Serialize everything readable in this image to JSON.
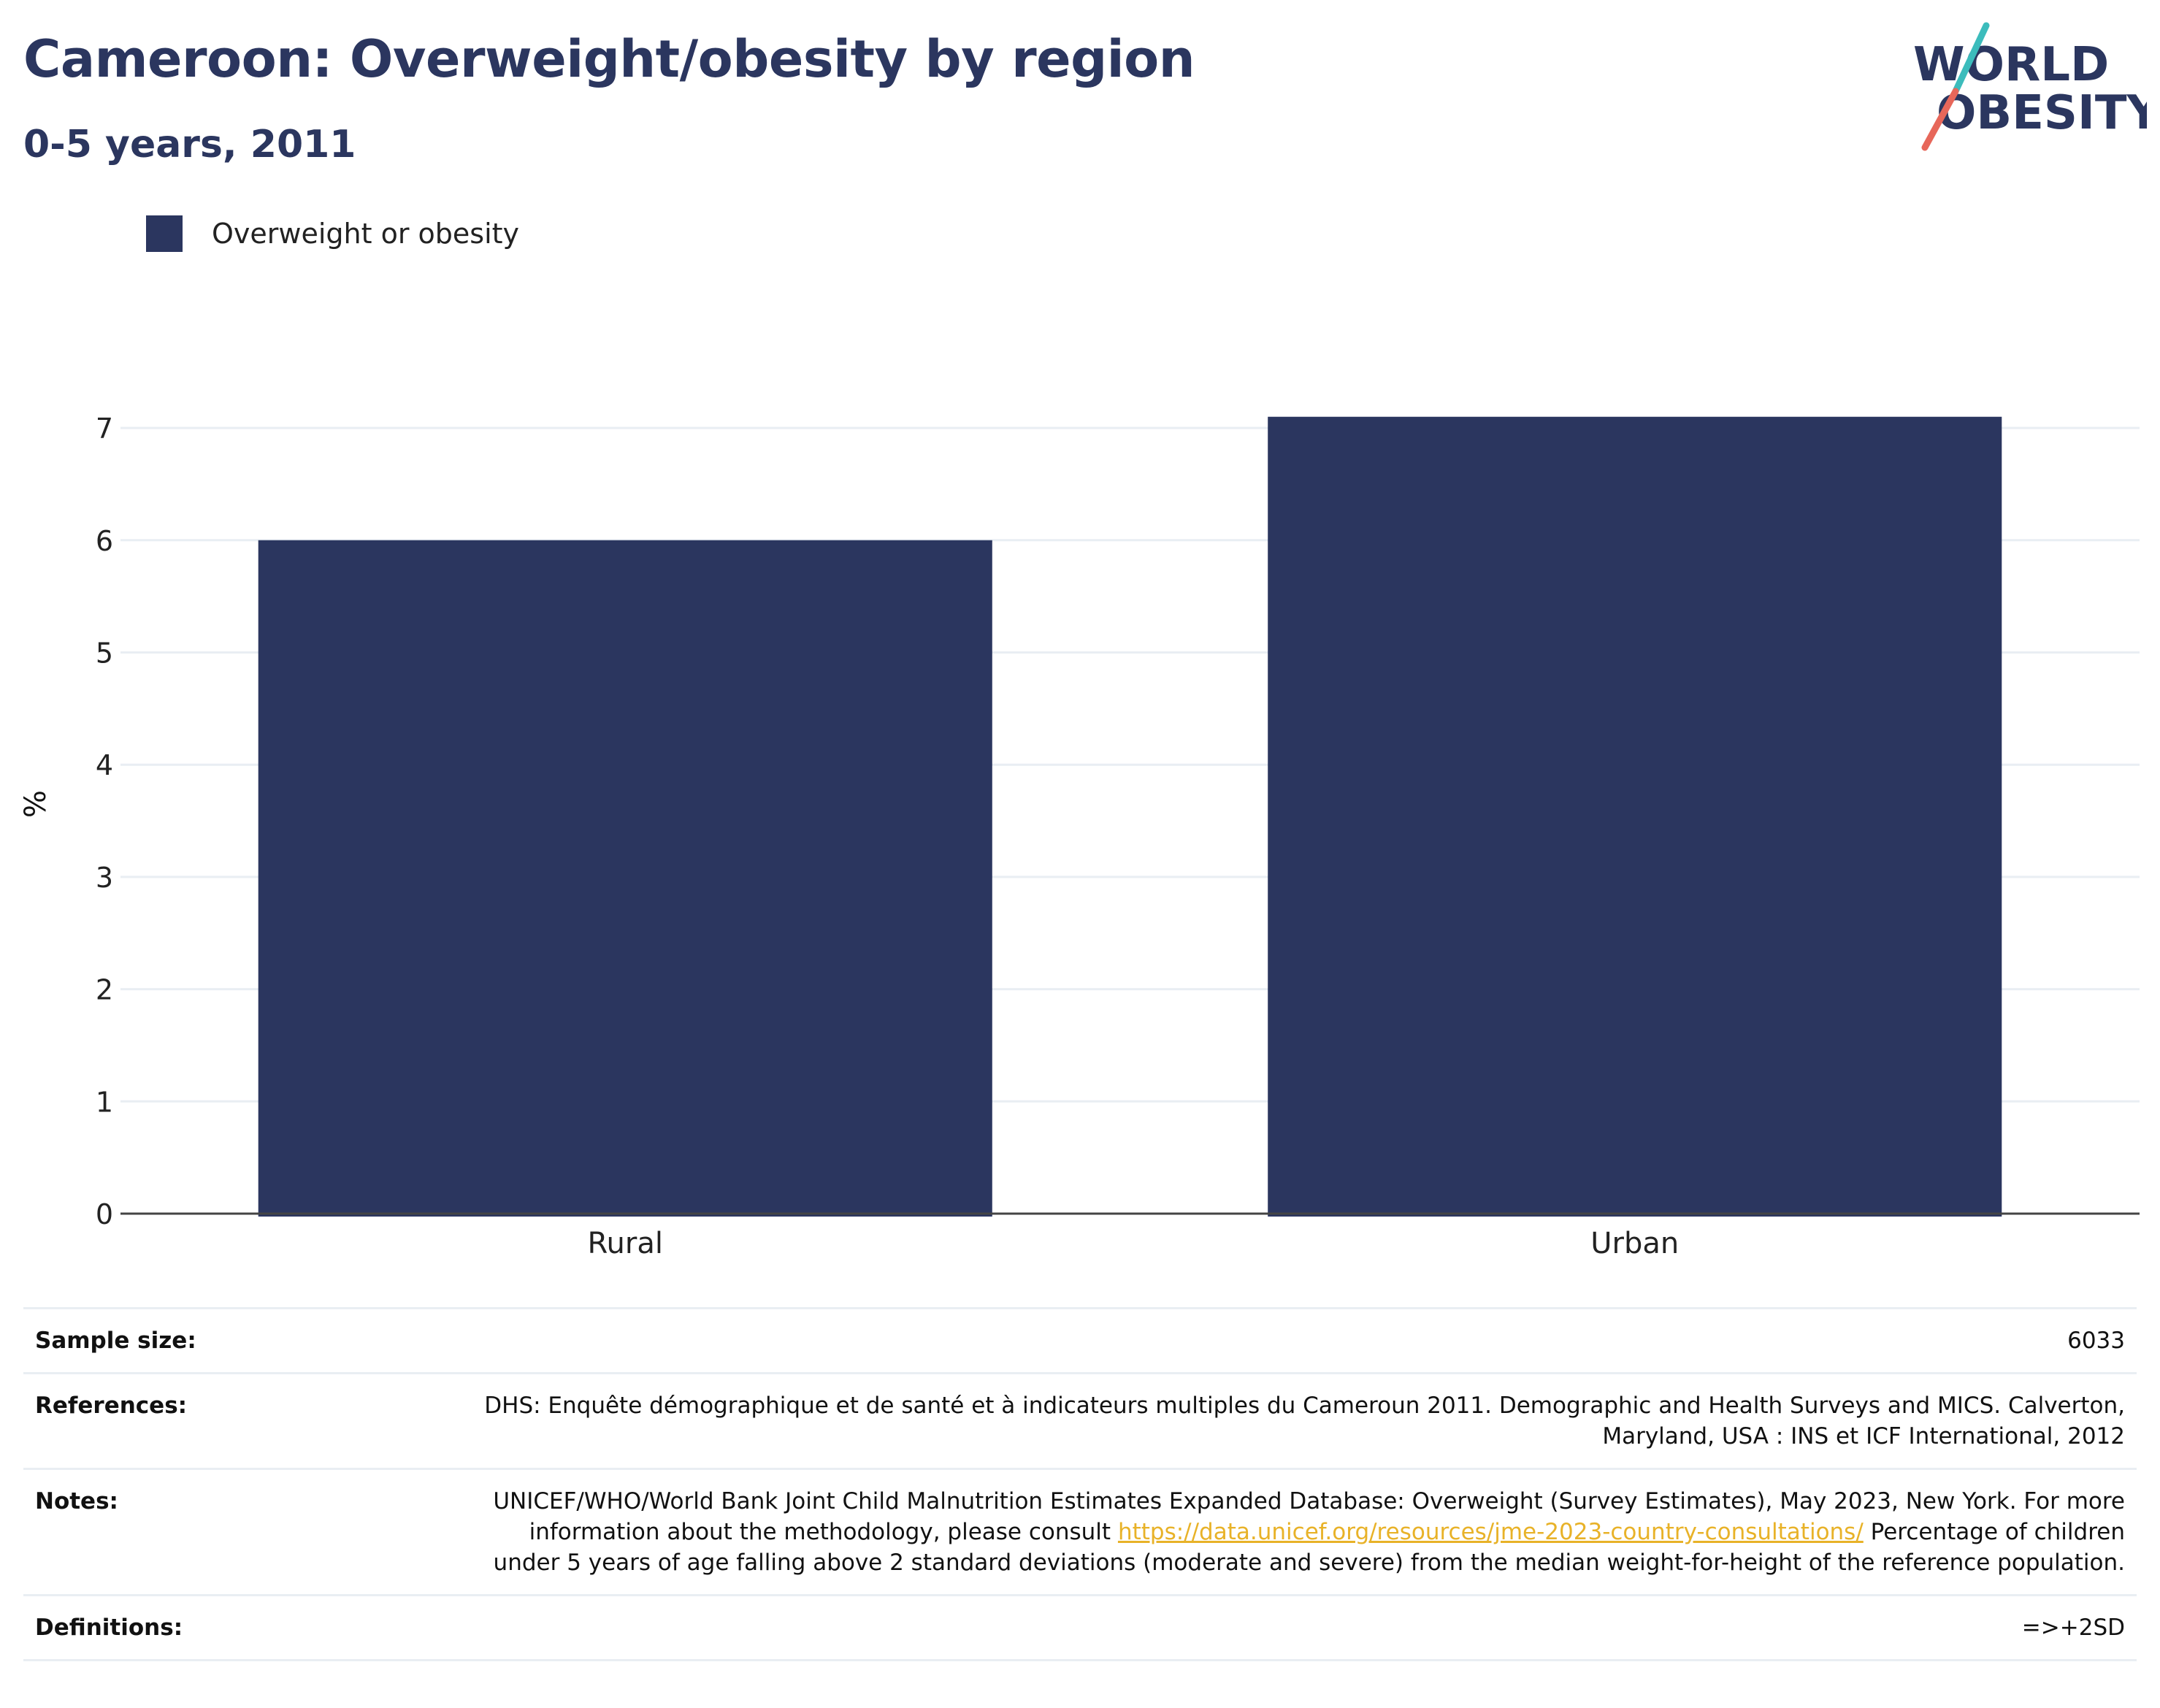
{
  "header": {
    "title": "Cameroon: Overweight/obesity by region",
    "subtitle": "0-5 years, 2011"
  },
  "logo": {
    "line1": "WORLD",
    "line2": "OBESITY",
    "colors": {
      "text": "#2b365f",
      "slash_top": "#3cbcbc",
      "slash_bottom": "#e7675a"
    }
  },
  "legend": {
    "items": [
      {
        "label": "Overweight or obesity",
        "color": "#2b365f"
      }
    ]
  },
  "chart_data": {
    "type": "bar",
    "categories": [
      "Rural",
      "Urban"
    ],
    "series": [
      {
        "name": "Overweight or obesity",
        "values": [
          6.0,
          7.1
        ],
        "color": "#2b365f"
      }
    ],
    "title": "Cameroon: Overweight/obesity by region",
    "subtitle": "0-5 years, 2011",
    "xlabel": "",
    "ylabel": "%",
    "ylim": [
      0,
      7.3
    ],
    "yticks": [
      0,
      1,
      2,
      3,
      4,
      5,
      6,
      7
    ],
    "grid": true,
    "legend_position": "top-left"
  },
  "info": {
    "sample_size": {
      "label": "Sample size:",
      "value": "6033"
    },
    "references": {
      "label": "References:",
      "value": "DHS: Enquête démographique et de santé et à indicateurs multiples du Cameroun 2011. Demographic and Health Surveys and MICS. Calverton, Maryland, USA : INS et ICF International, 2012"
    },
    "notes": {
      "label": "Notes:",
      "text_before": "UNICEF/WHO/World Bank Joint Child Malnutrition Estimates Expanded Database: Overweight (Survey Estimates), May 2023, New York. For more information about the methodology, please consult ",
      "link": "https://data.unicef.org/resources/jme-2023-country-consultations/",
      "text_after": " Percentage of children under 5 years of age falling above 2 standard deviations (moderate and severe) from the median weight-for-height of the reference population."
    },
    "definitions": {
      "label": "Definitions:",
      "value": "=>+2SD"
    }
  }
}
